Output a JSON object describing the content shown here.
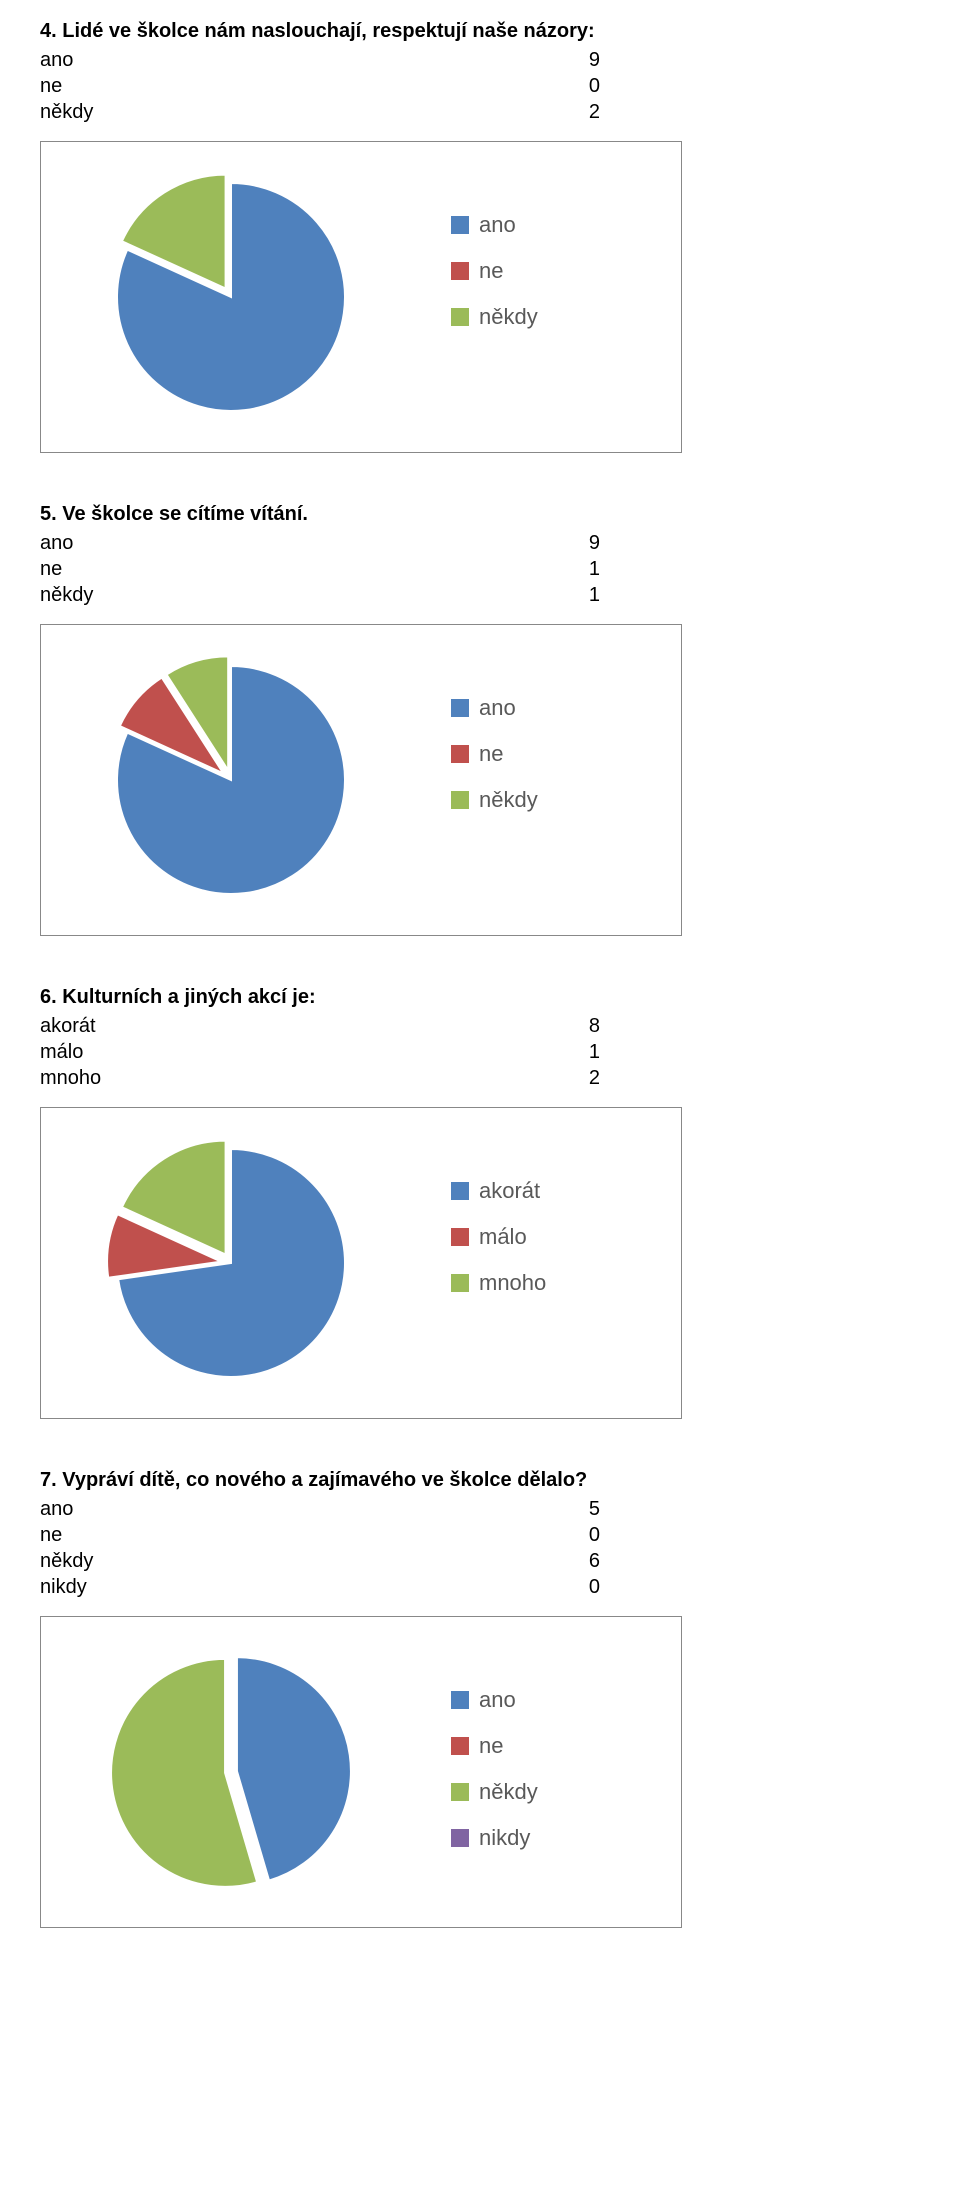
{
  "colors": {
    "c1": "#4f81bd",
    "c2": "#c0504d",
    "c3": "#9bbb59",
    "c4": "#8064a2",
    "border": "#888888",
    "text": "#000000",
    "legend_text": "#595959",
    "bg": "#ffffff"
  },
  "questions": [
    {
      "title": "4. Lidé ve školce nám naslouchají, respektují naše názory:",
      "rows": [
        {
          "label": "ano",
          "value": "9"
        },
        {
          "label": "ne",
          "value": "0"
        },
        {
          "label": "někdy",
          "value": "2"
        }
      ],
      "legend": [
        {
          "label": "ano",
          "color": "#4f81bd"
        },
        {
          "label": "ne",
          "color": "#c0504d"
        },
        {
          "label": "někdy",
          "color": "#9bbb59"
        }
      ],
      "slices": [
        {
          "color": "#4f81bd",
          "value": 9,
          "explode": 0
        },
        {
          "color": "#c0504d",
          "value": 0,
          "explode": 0
        },
        {
          "color": "#9bbb59",
          "value": 2,
          "explode": 10
        }
      ]
    },
    {
      "title": "5. Ve školce se cítíme vítání.",
      "rows": [
        {
          "label": "ano",
          "value": "9"
        },
        {
          "label": "ne",
          "value": "1"
        },
        {
          "label": "někdy",
          "value": "1"
        }
      ],
      "legend": [
        {
          "label": "ano",
          "color": "#4f81bd"
        },
        {
          "label": "ne",
          "color": "#c0504d"
        },
        {
          "label": "někdy",
          "color": "#9bbb59"
        }
      ],
      "slices": [
        {
          "color": "#4f81bd",
          "value": 9,
          "explode": 0
        },
        {
          "color": "#c0504d",
          "value": 1,
          "explode": 10
        },
        {
          "color": "#9bbb59",
          "value": 1,
          "explode": 10
        }
      ]
    },
    {
      "title": "6. Kulturních a jiných akcí je:",
      "rows": [
        {
          "label": "akorát",
          "value": "8"
        },
        {
          "label": "málo",
          "value": "1"
        },
        {
          "label": "mnoho",
          "value": "2"
        }
      ],
      "legend": [
        {
          "label": "akorát",
          "color": "#4f81bd"
        },
        {
          "label": "málo",
          "color": "#c0504d"
        },
        {
          "label": "mnoho",
          "color": "#9bbb59"
        }
      ],
      "slices": [
        {
          "color": "#4f81bd",
          "value": 8,
          "explode": 0
        },
        {
          "color": "#c0504d",
          "value": 1,
          "explode": 10
        },
        {
          "color": "#9bbb59",
          "value": 2,
          "explode": 10
        }
      ]
    },
    {
      "title": "7. Vypráví dítě, co nového a zajímavého ve školce dělalo?",
      "rows": [
        {
          "label": "ano",
          "value": "5"
        },
        {
          "label": "ne",
          "value": "0"
        },
        {
          "label": "někdy",
          "value": "6"
        },
        {
          "label": "nikdy",
          "value": "0"
        }
      ],
      "legend": [
        {
          "label": "ano",
          "color": "#4f81bd"
        },
        {
          "label": "ne",
          "color": "#c0504d"
        },
        {
          "label": "někdy",
          "color": "#9bbb59"
        },
        {
          "label": "nikdy",
          "color": "#8064a2"
        }
      ],
      "slices": [
        {
          "color": "#4f81bd",
          "value": 5,
          "explode": 6
        },
        {
          "color": "#c0504d",
          "value": 0,
          "explode": 0
        },
        {
          "color": "#9bbb59",
          "value": 6,
          "explode": 6
        },
        {
          "color": "#8064a2",
          "value": 0,
          "explode": 0
        }
      ]
    }
  ]
}
